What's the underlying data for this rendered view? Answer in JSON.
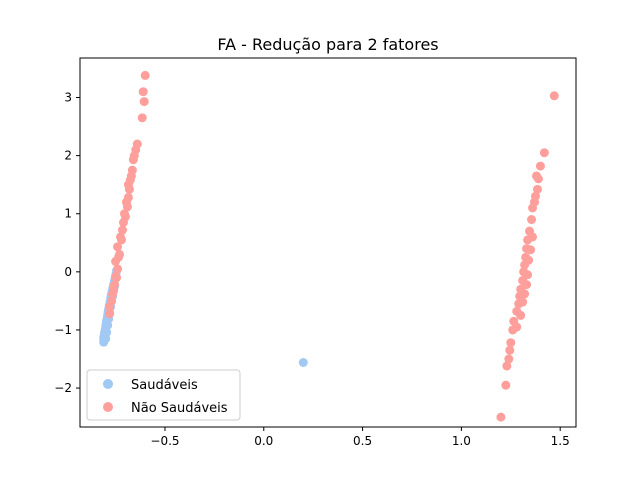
{
  "chart_data": {
    "type": "scatter",
    "title": "FA - Redução para 2 fatores",
    "xlabel": "",
    "ylabel": "",
    "xlim": [
      -0.93,
      1.58
    ],
    "ylim": [
      -2.67,
      3.68
    ],
    "xticks": [
      -0.5,
      0.0,
      0.5,
      1.0,
      1.5
    ],
    "xtick_labels": [
      "−0.5",
      "0.0",
      "0.5",
      "1.0",
      "1.5"
    ],
    "yticks": [
      -2,
      -1,
      0,
      1,
      2,
      3
    ],
    "ytick_labels": [
      "−2",
      "−1",
      "0",
      "1",
      "2",
      "3"
    ],
    "grid": false,
    "legend_position": "lower-left",
    "series": [
      {
        "name": "Saudáveis",
        "color": "#a1c9f4",
        "points": [
          [
            -0.81,
            -1.21
          ],
          [
            -0.81,
            -1.17
          ],
          [
            -0.81,
            -1.13
          ],
          [
            -0.807,
            -1.09
          ],
          [
            -0.806,
            -1.05
          ],
          [
            -0.803,
            -1.0
          ],
          [
            -0.8,
            -0.95
          ],
          [
            -0.798,
            -0.9
          ],
          [
            -0.796,
            -0.85
          ],
          [
            -0.793,
            -0.8
          ],
          [
            -0.79,
            -0.74
          ],
          [
            -0.788,
            -0.69
          ],
          [
            -0.785,
            -0.64
          ],
          [
            -0.782,
            -0.58
          ],
          [
            -0.778,
            -0.52
          ],
          [
            -0.775,
            -0.46
          ],
          [
            -0.772,
            -0.4
          ],
          [
            -0.768,
            -0.34
          ],
          [
            -0.764,
            -0.28
          ],
          [
            -0.76,
            -0.22
          ],
          [
            -0.756,
            -0.16
          ],
          [
            -0.752,
            -0.1
          ],
          [
            -0.748,
            -0.04
          ],
          [
            -0.745,
            0.02
          ],
          [
            -0.8,
            -1.15
          ],
          [
            -0.795,
            -1.04
          ],
          [
            -0.79,
            -0.92
          ],
          [
            -0.785,
            -0.81
          ],
          [
            -0.78,
            -0.7
          ],
          [
            -0.775,
            -0.6
          ],
          [
            -0.77,
            -0.5
          ],
          [
            -0.765,
            -0.42
          ],
          [
            -0.76,
            -0.33
          ],
          [
            -0.755,
            -0.25
          ],
          [
            0.2,
            -1.56
          ]
        ]
      },
      {
        "name": "Não Saudáveis",
        "color": "#ff9f9b",
        "points": [
          [
            -0.78,
            -0.72
          ],
          [
            -0.78,
            -0.6
          ],
          [
            -0.77,
            -0.5
          ],
          [
            -0.765,
            -0.38
          ],
          [
            -0.755,
            -0.22
          ],
          [
            -0.75,
            -0.08
          ],
          [
            -0.74,
            0.05
          ],
          [
            -0.75,
            0.18
          ],
          [
            -0.73,
            0.3
          ],
          [
            -0.74,
            0.43
          ],
          [
            -0.72,
            0.55
          ],
          [
            -0.715,
            0.72
          ],
          [
            -0.71,
            0.85
          ],
          [
            -0.705,
            1.0
          ],
          [
            -0.69,
            1.12
          ],
          [
            -0.685,
            1.28
          ],
          [
            -0.68,
            1.42
          ],
          [
            -0.675,
            1.58
          ],
          [
            -0.665,
            1.75
          ],
          [
            -0.66,
            1.93
          ],
          [
            -0.648,
            2.1
          ],
          [
            -0.64,
            2.2
          ],
          [
            -0.615,
            2.65
          ],
          [
            -0.605,
            2.93
          ],
          [
            -0.61,
            3.1
          ],
          [
            -0.6,
            3.38
          ],
          [
            -0.76,
            -0.3
          ],
          [
            -0.745,
            -0.1
          ],
          [
            -0.735,
            0.25
          ],
          [
            -0.725,
            0.6
          ],
          [
            -0.7,
            0.95
          ],
          [
            -0.695,
            1.2
          ],
          [
            -0.685,
            1.5
          ],
          [
            -0.67,
            1.65
          ],
          [
            -0.655,
            2.0
          ],
          [
            1.2,
            -2.5
          ],
          [
            1.225,
            -1.95
          ],
          [
            1.23,
            -1.62
          ],
          [
            1.24,
            -1.5
          ],
          [
            1.245,
            -1.35
          ],
          [
            1.25,
            -1.22
          ],
          [
            1.26,
            -1.0
          ],
          [
            1.265,
            -0.85
          ],
          [
            1.28,
            -0.68
          ],
          [
            1.29,
            -0.55
          ],
          [
            1.295,
            -0.42
          ],
          [
            1.3,
            -0.3
          ],
          [
            1.31,
            -0.15
          ],
          [
            1.315,
            0.0
          ],
          [
            1.32,
            0.12
          ],
          [
            1.325,
            0.25
          ],
          [
            1.33,
            0.4
          ],
          [
            1.335,
            0.55
          ],
          [
            1.345,
            0.7
          ],
          [
            1.355,
            0.9
          ],
          [
            1.36,
            1.1
          ],
          [
            1.375,
            1.3
          ],
          [
            1.385,
            1.42
          ],
          [
            1.39,
            1.6
          ],
          [
            1.4,
            1.82
          ],
          [
            1.42,
            2.05
          ],
          [
            1.47,
            3.03
          ],
          [
            1.28,
            -0.95
          ],
          [
            1.3,
            -0.75
          ],
          [
            1.31,
            -0.52
          ],
          [
            1.32,
            -0.38
          ],
          [
            1.33,
            -0.22
          ],
          [
            1.335,
            -0.05
          ],
          [
            1.34,
            0.2
          ],
          [
            1.35,
            0.38
          ],
          [
            1.36,
            0.6
          ],
          [
            1.37,
            1.2
          ],
          [
            1.38,
            1.65
          ]
        ]
      }
    ]
  }
}
